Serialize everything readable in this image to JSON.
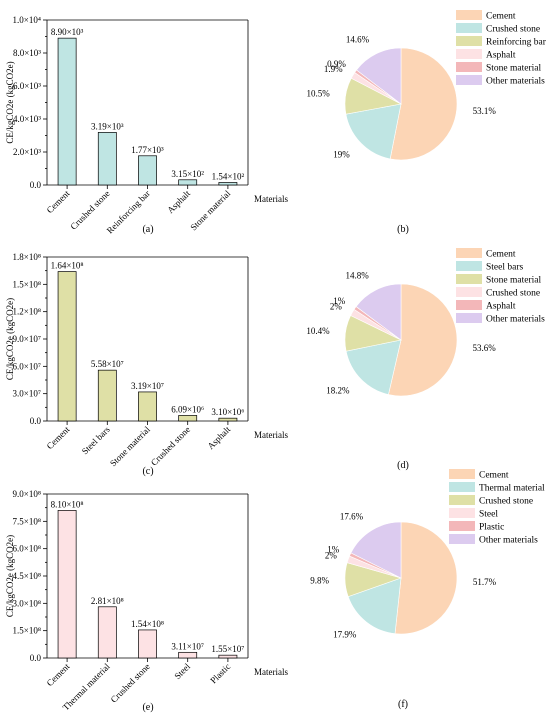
{
  "colors": {
    "cement": "#fcd5b5",
    "second": "#bfe5e3",
    "third": "#dfe0a6",
    "fourth": "#fde2e4",
    "fifth": "#f3b7b9",
    "other": "#dccbef",
    "bar_a": "#bfe5e3",
    "bar_c": "#dfe0a6",
    "bar_e": "#fde2e4"
  },
  "panels": [
    {
      "bar": {
        "id": "a",
        "type": "bar",
        "caption": "(a)",
        "ylabel": "CE/kgCO2e (kgCO2e)",
        "xlabel": "Materials",
        "categories": [
          "Cement",
          "Crushed stone",
          "Reinforcing bar",
          "Asphalt",
          "Stone material"
        ],
        "values": [
          8900,
          3190,
          1770,
          315,
          154
        ],
        "value_labels": [
          "8.90×10³",
          "3.19×10³",
          "1.77×10³",
          "3.15×10²",
          "1.54×10²"
        ],
        "ylim": [
          0,
          10000
        ],
        "yticks": [
          0,
          2000,
          4000,
          6000,
          8000,
          10000
        ],
        "ytick_labels": [
          "0.0",
          "2.0×10³",
          "4.0×10³",
          "6.0×10³",
          "8.0×10³",
          "1.0×10⁴"
        ],
        "color_key": "bar_a"
      },
      "pie": {
        "id": "b",
        "type": "pie",
        "caption": "(b)",
        "labels": [
          "Cement",
          "Crushed stone",
          "Reinforcing bar",
          "Asphalt",
          "Stone material",
          "Other materials"
        ],
        "values": [
          53.1,
          19,
          10.5,
          1.9,
          0.9,
          14.6
        ],
        "pct_labels": [
          "53.1%",
          "19%",
          "10.5%",
          "1.9%",
          "0.9%",
          "14.6%"
        ],
        "color_keys": [
          "cement",
          "second",
          "third",
          "fourth",
          "fifth",
          "other"
        ]
      }
    },
    {
      "bar": {
        "id": "c",
        "type": "bar",
        "caption": "(c)",
        "ylabel": "CE/kgCO2e (kgCO2e)",
        "xlabel": "Materials",
        "categories": [
          "Cement",
          "Steel bars",
          "Stone material",
          "Crushed stone",
          "Asphalt"
        ],
        "values": [
          164000000,
          55800000,
          31900000,
          6090000,
          3100000
        ],
        "value_labels": [
          "1.64×10⁸",
          "5.58×10⁷",
          "3.19×10⁷",
          "6.09×10⁶",
          "3.10×10⁶"
        ],
        "ylim": [
          0,
          180000000
        ],
        "yticks": [
          0,
          30000000,
          60000000,
          90000000,
          120000000,
          150000000,
          180000000
        ],
        "ytick_labels": [
          "0.0",
          "3.0×10⁷",
          "6.0×10⁷",
          "9.0×10⁷",
          "1.2×10⁸",
          "1.5×10⁸",
          "1.8×10⁸"
        ],
        "color_key": "bar_c"
      },
      "pie": {
        "id": "d",
        "type": "pie",
        "caption": "(d)",
        "labels": [
          "Cement",
          "Steel bars",
          "Stone material",
          "Crushed stone",
          "Asphalt",
          "Other materials"
        ],
        "values": [
          53.6,
          18.2,
          10.4,
          2,
          1,
          14.8
        ],
        "pct_labels": [
          "53.6%",
          "18.2%",
          "10.4%",
          "2%",
          "1%",
          "14.8%"
        ],
        "color_keys": [
          "cement",
          "second",
          "third",
          "fourth",
          "fifth",
          "other"
        ]
      }
    },
    {
      "bar": {
        "id": "e",
        "type": "bar",
        "caption": "(e)",
        "ylabel": "CE/kgCO2e (kgCO2e)",
        "xlabel": "Materials",
        "categories": [
          "Cement",
          "Thermal material",
          "Crushed stone",
          "Steel",
          "Plastic"
        ],
        "values": [
          810000000,
          281000000,
          154000000,
          31100000,
          15500000
        ],
        "value_labels": [
          "8.10×10⁸",
          "2.81×10⁸",
          "1.54×10⁸",
          "3.11×10⁷",
          "1.55×10⁷"
        ],
        "ylim": [
          0,
          900000000
        ],
        "yticks": [
          0,
          150000000,
          300000000,
          450000000,
          600000000,
          750000000,
          900000000
        ],
        "ytick_labels": [
          "0.0",
          "1.5×10⁸",
          "3.0×10⁸",
          "4.5×10⁸",
          "6.0×10⁸",
          "7.5×10⁸",
          "9.0×10⁸"
        ],
        "color_key": "bar_e"
      },
      "pie": {
        "id": "f",
        "type": "pie",
        "caption": "(f)",
        "labels": [
          "Cement",
          "Thermal material",
          "Crushed stone",
          "Steel",
          "Plastic",
          "Other materials"
        ],
        "values": [
          51.7,
          17.9,
          9.8,
          2,
          1,
          17.6
        ],
        "pct_labels": [
          "51.7%",
          "17.9%",
          "9.8%",
          "2%",
          "1%",
          "17.6%"
        ],
        "color_keys": [
          "cement",
          "second",
          "third",
          "fourth",
          "fifth",
          "other"
        ]
      }
    }
  ]
}
